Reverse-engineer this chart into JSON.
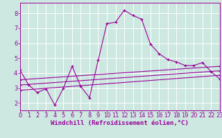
{
  "background_color": "#cce8e0",
  "grid_color": "#aacccc",
  "line_color": "#990099",
  "marker": "+",
  "xmin": 0,
  "xmax": 23,
  "ymin": 1.5,
  "ymax": 8.7,
  "yticks": [
    2,
    3,
    4,
    5,
    6,
    7,
    8
  ],
  "xticks": [
    0,
    1,
    2,
    3,
    4,
    5,
    6,
    7,
    8,
    9,
    10,
    11,
    12,
    13,
    14,
    15,
    16,
    17,
    18,
    19,
    20,
    21,
    22,
    23
  ],
  "xlabel": "Windchill (Refroidissement éolien,°C)",
  "series1_x": [
    0,
    1,
    2,
    3,
    4,
    5,
    6,
    7,
    8,
    9,
    10,
    11,
    12,
    13,
    14,
    15,
    16,
    17,
    18,
    19,
    20,
    21,
    22,
    23
  ],
  "series1_y": [
    4.2,
    3.2,
    2.7,
    2.95,
    1.85,
    3.0,
    4.45,
    3.1,
    2.35,
    4.85,
    7.3,
    7.4,
    8.2,
    7.85,
    7.6,
    5.95,
    5.3,
    4.9,
    4.75,
    4.5,
    4.5,
    4.7,
    4.1,
    3.6
  ],
  "series2_x": [
    0,
    23
  ],
  "series2_y": [
    3.55,
    4.45
  ],
  "series3_x": [
    0,
    23
  ],
  "series3_y": [
    2.85,
    3.85
  ],
  "series4_x": [
    0,
    23
  ],
  "series4_y": [
    3.2,
    4.15
  ],
  "tick_fontsize": 6,
  "label_fontsize": 6.5
}
